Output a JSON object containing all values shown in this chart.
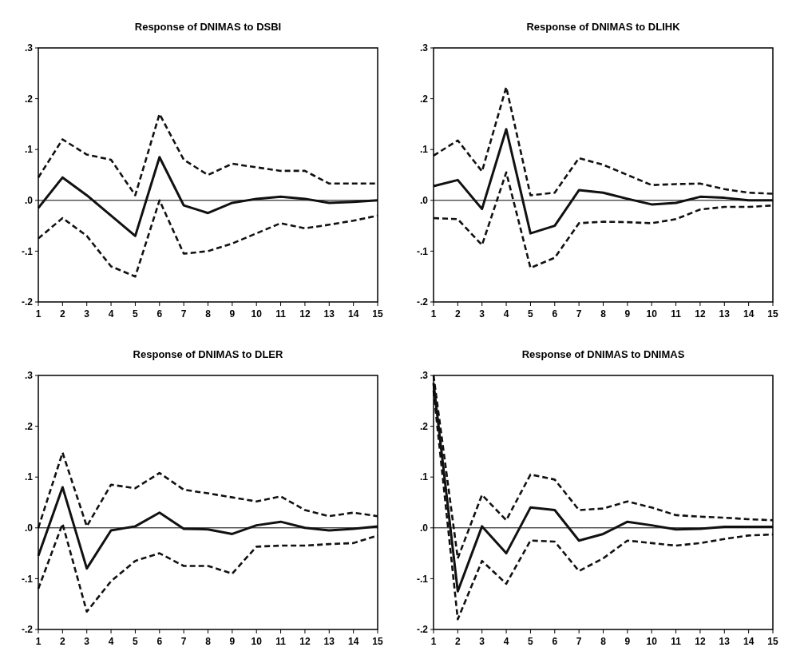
{
  "chart_data": [
    {
      "type": "line",
      "title": "Response of DNIMAS to DSBI",
      "x": [
        1,
        2,
        3,
        4,
        5,
        6,
        7,
        8,
        9,
        10,
        11,
        12,
        13,
        14,
        15
      ],
      "xlim": [
        1,
        15
      ],
      "xticks": [
        1,
        2,
        3,
        4,
        5,
        6,
        7,
        8,
        9,
        10,
        11,
        12,
        13,
        14,
        15
      ],
      "ylim": [
        -0.2,
        0.3
      ],
      "yticks": [
        {
          "value": -0.2,
          "label": "-.2"
        },
        {
          "value": -0.1,
          "label": "-.1"
        },
        {
          "value": 0,
          "label": ".0"
        },
        {
          "value": 0.1,
          "label": ".1"
        },
        {
          "value": 0.2,
          "label": ".2"
        },
        {
          "value": 0.3,
          "label": ".3"
        }
      ],
      "ref_lines": [
        {
          "axis": "y",
          "value": 0,
          "color": "#000000"
        }
      ],
      "series": [
        {
          "color": "#111111",
          "line_style": "solid",
          "values": [
            -0.015,
            0.045,
            0.01,
            -0.03,
            -0.07,
            0.085,
            -0.01,
            -0.025,
            -0.005,
            0.003,
            0.007,
            0.003,
            -0.005,
            -0.003,
            0.0
          ]
        },
        {
          "color": "#111111",
          "line_style": "dashed",
          "values": [
            0.045,
            0.12,
            0.09,
            0.08,
            0.01,
            0.17,
            0.08,
            0.05,
            0.072,
            0.065,
            0.058,
            0.058,
            0.033,
            0.033,
            0.033
          ]
        },
        {
          "color": "#111111",
          "line_style": "dashed",
          "values": [
            -0.075,
            -0.035,
            -0.07,
            -0.13,
            -0.15,
            0.0,
            -0.105,
            -0.1,
            -0.085,
            -0.065,
            -0.045,
            -0.055,
            -0.048,
            -0.04,
            -0.03
          ]
        }
      ]
    },
    {
      "type": "line",
      "title": "Response of DNIMAS to DLIHK",
      "x": [
        1,
        2,
        3,
        4,
        5,
        6,
        7,
        8,
        9,
        10,
        11,
        12,
        13,
        14,
        15
      ],
      "xlim": [
        1,
        15
      ],
      "xticks": [
        1,
        2,
        3,
        4,
        5,
        6,
        7,
        8,
        9,
        10,
        11,
        12,
        13,
        14,
        15
      ],
      "ylim": [
        -0.2,
        0.3
      ],
      "yticks": [
        {
          "value": -0.2,
          "label": "-.2"
        },
        {
          "value": -0.1,
          "label": "-.1"
        },
        {
          "value": 0,
          "label": ".0"
        },
        {
          "value": 0.1,
          "label": ".1"
        },
        {
          "value": 0.2,
          "label": ".2"
        },
        {
          "value": 0.3,
          "label": ".3"
        }
      ],
      "ref_lines": [
        {
          "axis": "y",
          "value": 0,
          "color": "#000000"
        }
      ],
      "series": [
        {
          "color": "#111111",
          "line_style": "solid",
          "values": [
            0.028,
            0.04,
            -0.017,
            0.14,
            -0.065,
            -0.05,
            0.02,
            0.015,
            0.003,
            -0.008,
            -0.005,
            0.007,
            0.005,
            0.0,
            0.0
          ]
        },
        {
          "color": "#111111",
          "line_style": "dashed",
          "values": [
            0.088,
            0.118,
            0.057,
            0.223,
            0.01,
            0.015,
            0.083,
            0.07,
            0.05,
            0.03,
            0.032,
            0.033,
            0.022,
            0.015,
            0.013
          ]
        },
        {
          "color": "#111111",
          "line_style": "dashed",
          "values": [
            -0.035,
            -0.037,
            -0.088,
            0.055,
            -0.133,
            -0.113,
            -0.045,
            -0.042,
            -0.043,
            -0.045,
            -0.037,
            -0.018,
            -0.013,
            -0.013,
            -0.01
          ]
        }
      ]
    },
    {
      "type": "line",
      "title": "Response of DNIMAS to DLER",
      "x": [
        1,
        2,
        3,
        4,
        5,
        6,
        7,
        8,
        9,
        10,
        11,
        12,
        13,
        14,
        15
      ],
      "xlim": [
        1,
        15
      ],
      "xticks": [
        1,
        2,
        3,
        4,
        5,
        6,
        7,
        8,
        9,
        10,
        11,
        12,
        13,
        14,
        15
      ],
      "ylim": [
        -0.2,
        0.3
      ],
      "yticks": [
        {
          "value": -0.2,
          "label": "-.2"
        },
        {
          "value": -0.1,
          "label": "-.1"
        },
        {
          "value": 0,
          "label": ".0"
        },
        {
          "value": 0.1,
          "label": ".1"
        },
        {
          "value": 0.2,
          "label": ".2"
        },
        {
          "value": 0.3,
          "label": ".3"
        }
      ],
      "ref_lines": [
        {
          "axis": "y",
          "value": 0,
          "color": "#000000"
        }
      ],
      "series": [
        {
          "color": "#111111",
          "line_style": "solid",
          "values": [
            -0.055,
            0.08,
            -0.08,
            -0.005,
            0.003,
            0.03,
            -0.002,
            -0.003,
            -0.012,
            0.005,
            0.012,
            0.0,
            -0.005,
            -0.002,
            0.003
          ]
        },
        {
          "color": "#111111",
          "line_style": "dashed",
          "values": [
            0.0,
            0.148,
            0.003,
            0.085,
            0.078,
            0.108,
            0.075,
            0.068,
            0.06,
            0.052,
            0.062,
            0.035,
            0.023,
            0.03,
            0.023
          ]
        },
        {
          "color": "#111111",
          "line_style": "dashed",
          "values": [
            -0.12,
            0.008,
            -0.165,
            -0.105,
            -0.065,
            -0.05,
            -0.075,
            -0.075,
            -0.09,
            -0.037,
            -0.035,
            -0.035,
            -0.032,
            -0.03,
            -0.015
          ]
        }
      ]
    },
    {
      "type": "line",
      "title": "Response of DNIMAS to DNIMAS",
      "x": [
        1,
        2,
        3,
        4,
        5,
        6,
        7,
        8,
        9,
        10,
        11,
        12,
        13,
        14,
        15
      ],
      "xlim": [
        1,
        15
      ],
      "xticks": [
        1,
        2,
        3,
        4,
        5,
        6,
        7,
        8,
        9,
        10,
        11,
        12,
        13,
        14,
        15
      ],
      "ylim": [
        -0.2,
        0.3
      ],
      "yticks": [
        {
          "value": -0.2,
          "label": "-.2"
        },
        {
          "value": -0.1,
          "label": "-.1"
        },
        {
          "value": 0,
          "label": ".0"
        },
        {
          "value": 0.1,
          "label": ".1"
        },
        {
          "value": 0.2,
          "label": ".2"
        },
        {
          "value": 0.3,
          "label": ".3"
        }
      ],
      "ref_lines": [
        {
          "axis": "y",
          "value": 0,
          "color": "#000000"
        }
      ],
      "series": [
        {
          "color": "#111111",
          "line_style": "solid",
          "values": [
            0.285,
            -0.125,
            0.003,
            -0.05,
            0.04,
            0.035,
            -0.025,
            -0.012,
            0.012,
            0.005,
            -0.003,
            -0.002,
            0.002,
            0.002,
            0.002
          ]
        },
        {
          "color": "#111111",
          "line_style": "dashed",
          "values": [
            0.3,
            -0.06,
            0.065,
            0.015,
            0.105,
            0.095,
            0.035,
            0.038,
            0.052,
            0.04,
            0.025,
            0.022,
            0.02,
            0.017,
            0.015
          ]
        },
        {
          "color": "#111111",
          "line_style": "dashed",
          "values": [
            0.27,
            -0.18,
            -0.065,
            -0.11,
            -0.025,
            -0.027,
            -0.085,
            -0.06,
            -0.025,
            -0.03,
            -0.035,
            -0.03,
            -0.022,
            -0.015,
            -0.013
          ]
        }
      ]
    }
  ]
}
